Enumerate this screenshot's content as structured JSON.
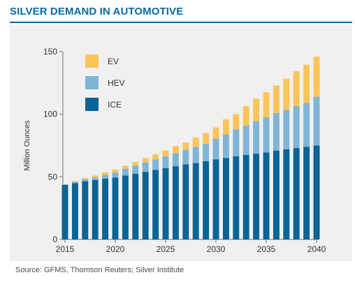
{
  "header": {
    "title": "SILVER DEMAND IN AUTOMOTIVE"
  },
  "footer": {
    "source": "Source: GFMS, Thomson Reuters; Silver Institute"
  },
  "chart_data": {
    "type": "bar",
    "stacked": true,
    "title": "SILVER DEMAND IN AUTOMOTIVE",
    "xlabel": "",
    "ylabel": "Million Ounces",
    "ylim": [
      0,
      150
    ],
    "yticks": [
      0,
      50,
      100,
      150
    ],
    "xticks": [
      2015,
      2020,
      2025,
      2030,
      2035,
      2040
    ],
    "grid": false,
    "legend": "top-left",
    "categories": [
      2015,
      2016,
      2017,
      2018,
      2019,
      2020,
      2021,
      2022,
      2023,
      2024,
      2025,
      2026,
      2027,
      2028,
      2029,
      2030,
      2031,
      2032,
      2033,
      2034,
      2035,
      2036,
      2037,
      2038,
      2039,
      2040
    ],
    "series": [
      {
        "name": "ICE",
        "color": "#0a6496",
        "values": [
          43.5,
          45,
          46.5,
          47.5,
          48.5,
          49.5,
          51,
          52.5,
          54,
          55.5,
          57,
          58.5,
          60,
          61,
          62.5,
          64,
          65,
          66.5,
          67.5,
          68.5,
          69.5,
          71,
          72,
          73,
          74,
          75
        ]
      },
      {
        "name": "HEV",
        "color": "#7fb5d5",
        "values": [
          0.5,
          1,
          1.5,
          2,
          3,
          4,
          5.5,
          6.5,
          7.5,
          8.5,
          9.5,
          10.5,
          11.5,
          13,
          14,
          16.5,
          19,
          21.5,
          23.5,
          26,
          28,
          30,
          31.5,
          33.5,
          35,
          39
        ]
      },
      {
        "name": "EV",
        "color": "#fcc559",
        "values": [
          0.3,
          0.6,
          1,
          1.5,
          2,
          2.3,
          2.5,
          3,
          3.5,
          4,
          4.5,
          5.5,
          6,
          7.5,
          8.5,
          9,
          12,
          12,
          15.5,
          18,
          20,
          22,
          25,
          28,
          30.5,
          32
        ]
      }
    ]
  }
}
